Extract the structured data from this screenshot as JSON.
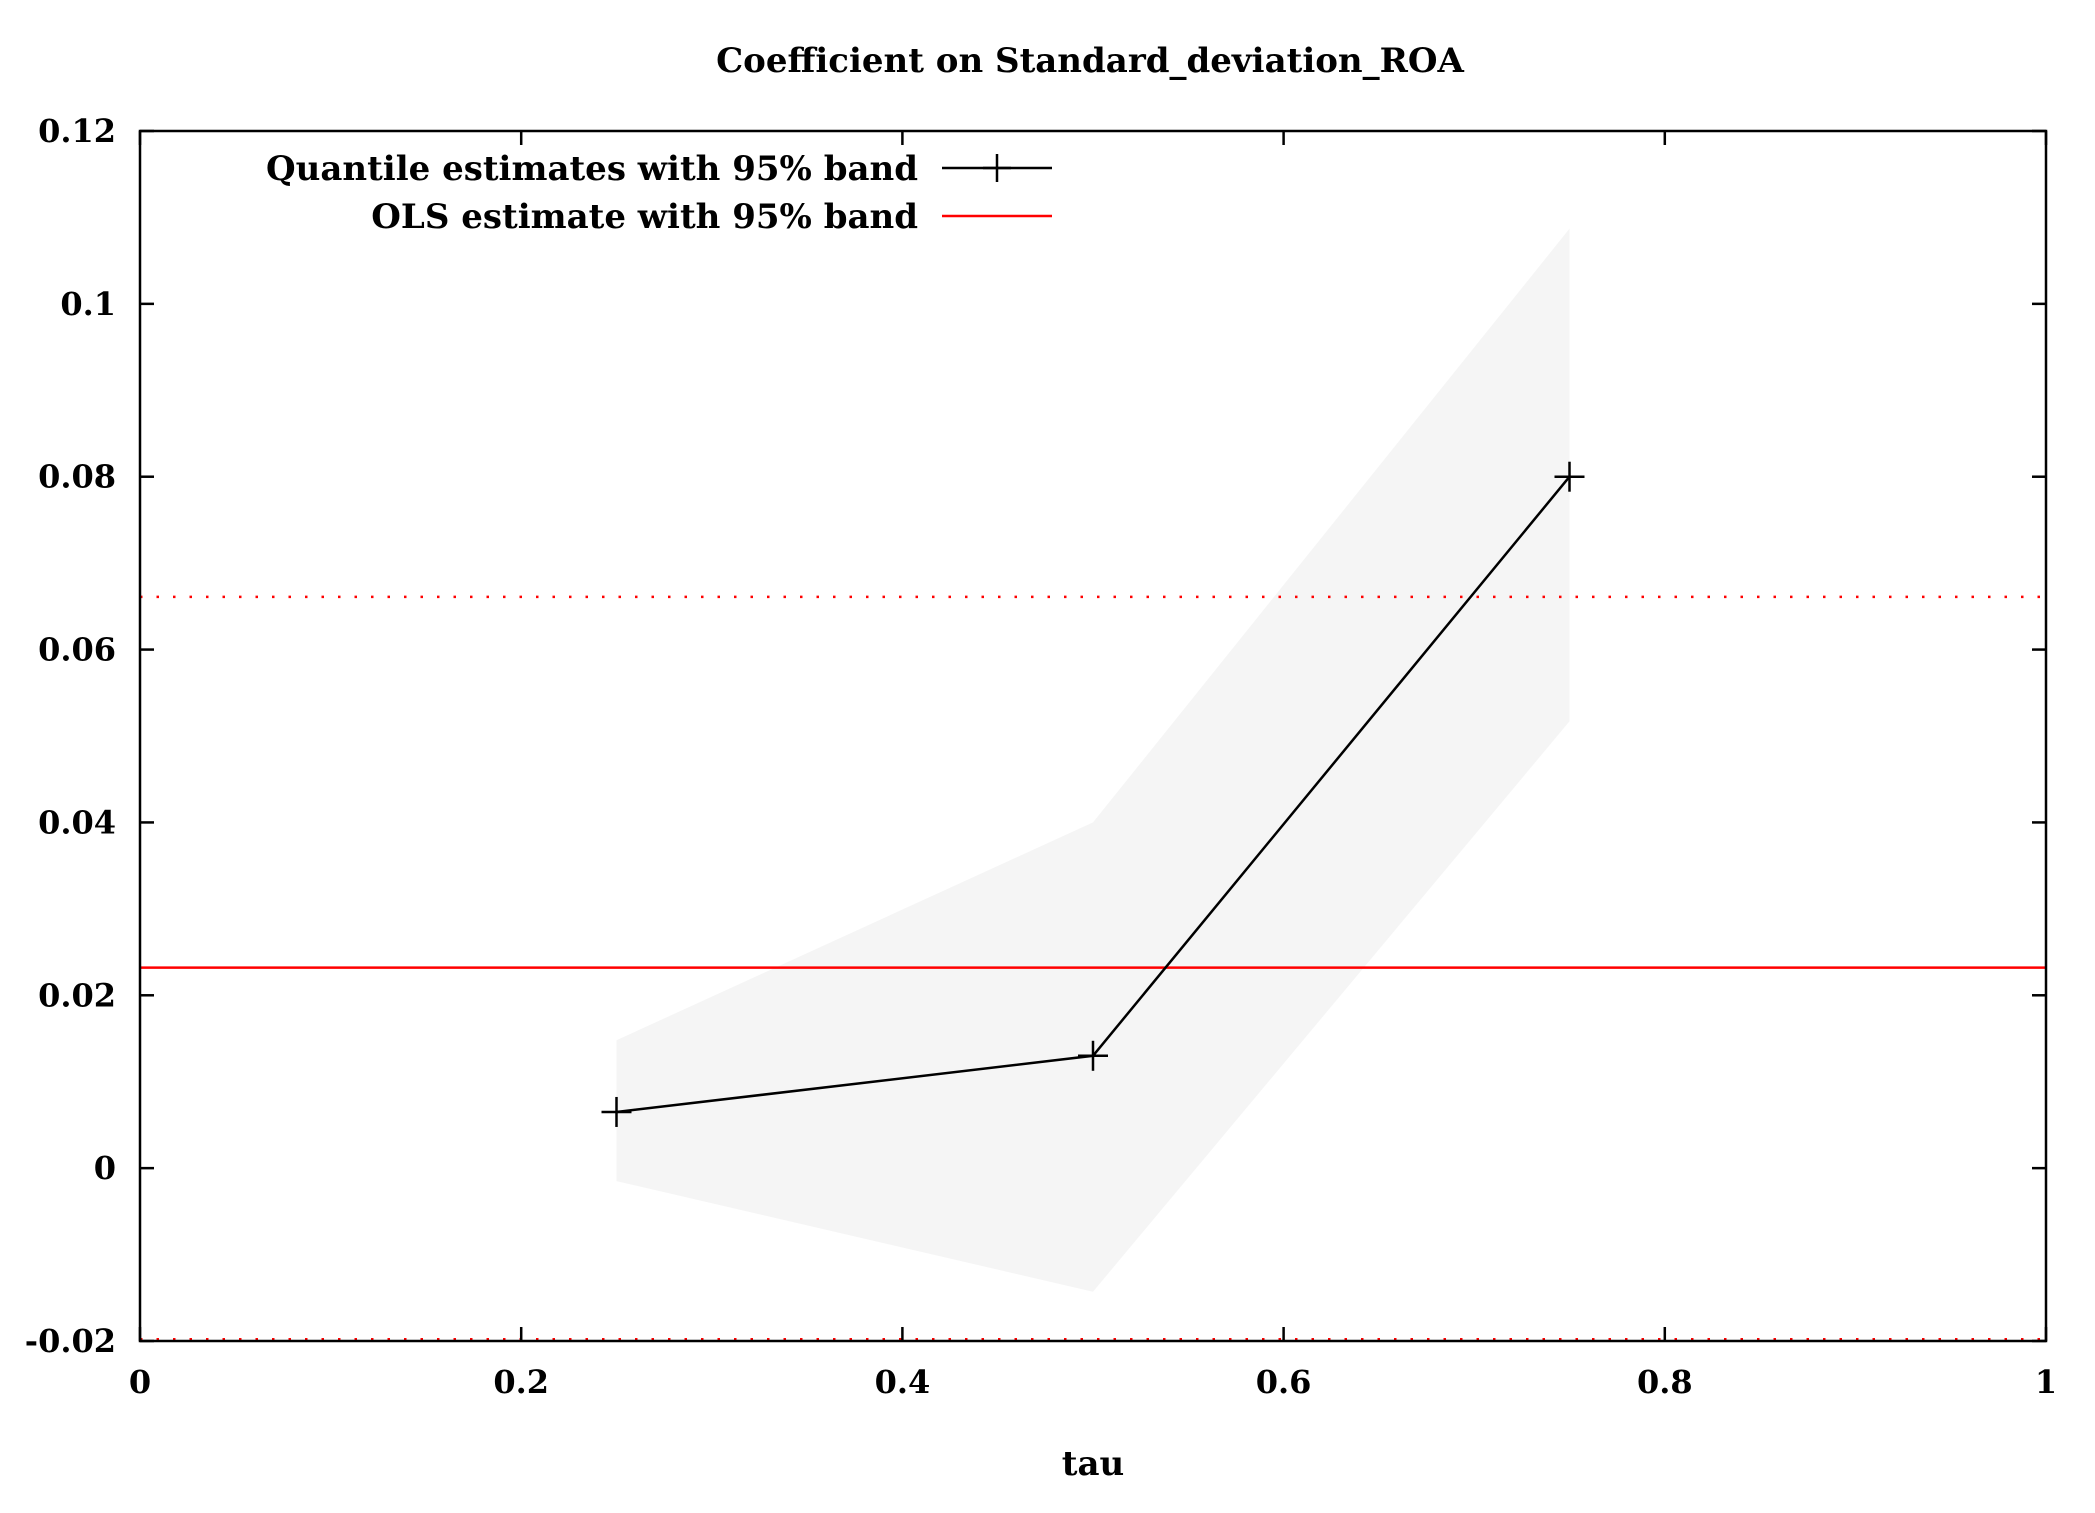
{
  "chart_data": {
    "type": "line",
    "title": "Coefficient on Standard_deviation_ROA",
    "xlabel": "tau",
    "ylabel": "",
    "xlim": [
      0,
      1
    ],
    "ylim": [
      -0.02,
      0.12
    ],
    "x_ticks": [
      0,
      0.2,
      0.4,
      0.6,
      0.8,
      1
    ],
    "x_tick_labels": [
      "0",
      "0.2",
      "0.4",
      "0.6",
      "0.8",
      "1"
    ],
    "y_ticks": [
      -0.02,
      0,
      0.02,
      0.04,
      0.06,
      0.08,
      0.1,
      0.12
    ],
    "y_tick_labels": [
      "-0.02",
      "0",
      "0.02",
      "0.04",
      "0.06",
      "0.08",
      "0.1",
      "0.12"
    ],
    "legend_position": "top-left",
    "series": [
      {
        "name": "Quantile estimates with 95% band",
        "color": "#000000",
        "x": [
          0.25,
          0.5,
          0.75
        ],
        "values": [
          0.0065,
          0.013,
          0.08
        ],
        "band_lower": [
          -0.0015,
          -0.0143,
          0.0517
        ],
        "band_upper": [
          0.0148,
          0.04,
          0.1087
        ],
        "band_color": "#f5f5f5",
        "marker": "plus"
      },
      {
        "name": "OLS estimate with 95% band",
        "color": "#ff0000",
        "value": 0.0232,
        "band_lower": -0.0198,
        "band_upper": 0.0661
      }
    ]
  }
}
